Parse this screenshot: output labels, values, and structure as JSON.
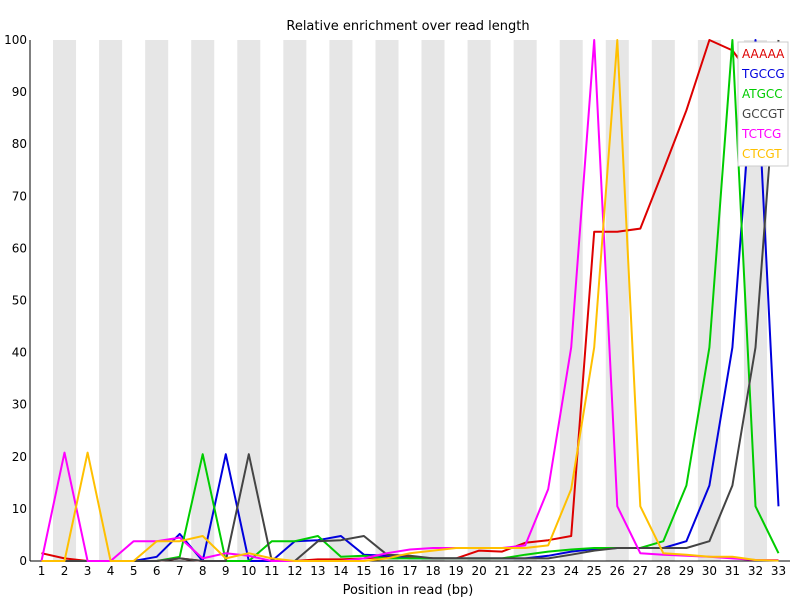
{
  "chart_data": {
    "type": "line",
    "title": "Relative enrichment over read length",
    "xlabel": "Position in read (bp)",
    "ylabel": "",
    "x": [
      1,
      2,
      3,
      4,
      5,
      6,
      7,
      8,
      9,
      10,
      11,
      12,
      13,
      14,
      15,
      16,
      17,
      18,
      19,
      20,
      21,
      22,
      23,
      24,
      25,
      26,
      27,
      28,
      29,
      30,
      31,
      32,
      33
    ],
    "xlim": [
      1,
      33
    ],
    "ylim": [
      0,
      100
    ],
    "yticks": [
      0,
      10,
      20,
      30,
      40,
      50,
      60,
      70,
      80,
      90,
      100
    ],
    "grid": "alternating vertical bands",
    "legend_position": "top-right",
    "series": [
      {
        "name": "AAAAA",
        "color": "#dd0000",
        "values": [
          1.5,
          0.5,
          0,
          0,
          0,
          0,
          0.5,
          0,
          0,
          0,
          0,
          0,
          0.3,
          0.3,
          0.5,
          0.8,
          0.8,
          0.5,
          0.5,
          2,
          1.8,
          3.5,
          4,
          4.8,
          63.2,
          63.2,
          63.8,
          75,
          86.5,
          100,
          98,
          92,
          93
        ]
      },
      {
        "name": "TGCCG",
        "color": "#0000dd",
        "values": [
          0,
          0,
          0,
          0,
          0,
          0.8,
          5.2,
          0,
          20.5,
          0,
          0,
          3.8,
          4,
          4.8,
          1.2,
          1,
          0.5,
          0.5,
          0.5,
          0.5,
          0.5,
          0.5,
          1,
          1.8,
          2.3,
          2.5,
          2.5,
          2.5,
          3.8,
          14.5,
          41,
          100,
          10.5
        ]
      },
      {
        "name": "ATGCC",
        "color": "#00cc00",
        "values": [
          0,
          0,
          0,
          0,
          0,
          0,
          0.8,
          20.5,
          0,
          0,
          3.8,
          3.8,
          4.8,
          0.8,
          1,
          0.5,
          0.5,
          0.5,
          0.5,
          0.5,
          0.5,
          1.2,
          1.8,
          2.2,
          2.5,
          2.5,
          2.5,
          3.8,
          14.5,
          41,
          100,
          10.5,
          1.5
        ]
      },
      {
        "name": "GCCGT",
        "color": "#444444",
        "values": [
          0,
          0,
          0,
          0,
          0,
          0,
          0.5,
          0,
          0,
          20.5,
          0,
          0,
          3.8,
          4,
          4.8,
          1.2,
          1,
          0.5,
          0.5,
          0.5,
          0.5,
          0.5,
          0.5,
          1.2,
          2,
          2.5,
          2.5,
          2.5,
          2.5,
          3.8,
          14.5,
          41,
          100
        ]
      },
      {
        "name": "TCTCG",
        "color": "#ff00ff",
        "values": [
          0,
          20.8,
          0,
          0,
          3.8,
          3.8,
          4.5,
          0.5,
          1.5,
          1,
          0,
          0,
          0,
          0,
          0.5,
          1.5,
          2.2,
          2.5,
          2.5,
          2.5,
          2.5,
          3,
          13.8,
          41,
          100,
          10.5,
          1.5,
          1.2,
          1,
          0.8,
          0.5,
          0.2,
          0.2
        ]
      },
      {
        "name": "CTCGT",
        "color": "#ffc000",
        "values": [
          0,
          0,
          20.8,
          0,
          0,
          3.8,
          3.8,
          4.8,
          0.5,
          1.5,
          0.5,
          0,
          0,
          0,
          0,
          0.5,
          1.5,
          2,
          2.5,
          2.5,
          2.5,
          2.5,
          3,
          13.8,
          41,
          100,
          10.5,
          1.5,
          1.2,
          0.8,
          0.8,
          0.2,
          0.1
        ]
      }
    ]
  }
}
